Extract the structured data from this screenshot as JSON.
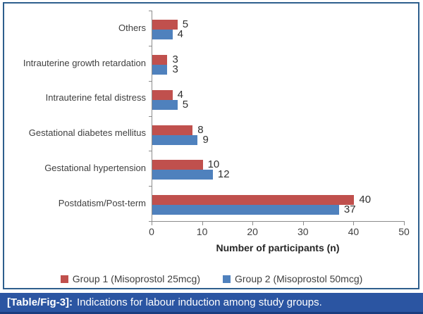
{
  "figure": {
    "caption_prefix": "[Table/Fig-3]:",
    "caption_text": "Indications for labour induction among study groups.",
    "caption_bg": "#2B55A2",
    "frame_border_color": "#2E5F8D"
  },
  "chart_data": {
    "type": "bar",
    "orientation": "horizontal",
    "title": "",
    "xlabel": "Number of participants (n)",
    "ylabel": "",
    "categories": [
      "Others",
      "Intrauterine growth retardation",
      "Intrauterine fetal distress",
      "Gestational diabetes mellitus",
      "Gestational hypertension",
      "Postdatism/Post-term"
    ],
    "series": [
      {
        "name": "Group 1 (Misoprostol 25mcg)",
        "color": "#C0504D",
        "values": [
          5,
          3,
          4,
          8,
          10,
          40
        ]
      },
      {
        "name": "Group 2 (Misoprostol 50mcg)",
        "color": "#4F81BD",
        "values": [
          4,
          3,
          5,
          9,
          12,
          37
        ]
      }
    ],
    "xlim": [
      0,
      50
    ],
    "x_ticks": [
      0,
      10,
      20,
      30,
      40,
      50
    ],
    "data_labels": true,
    "grid": false,
    "legend_position": "bottom"
  }
}
